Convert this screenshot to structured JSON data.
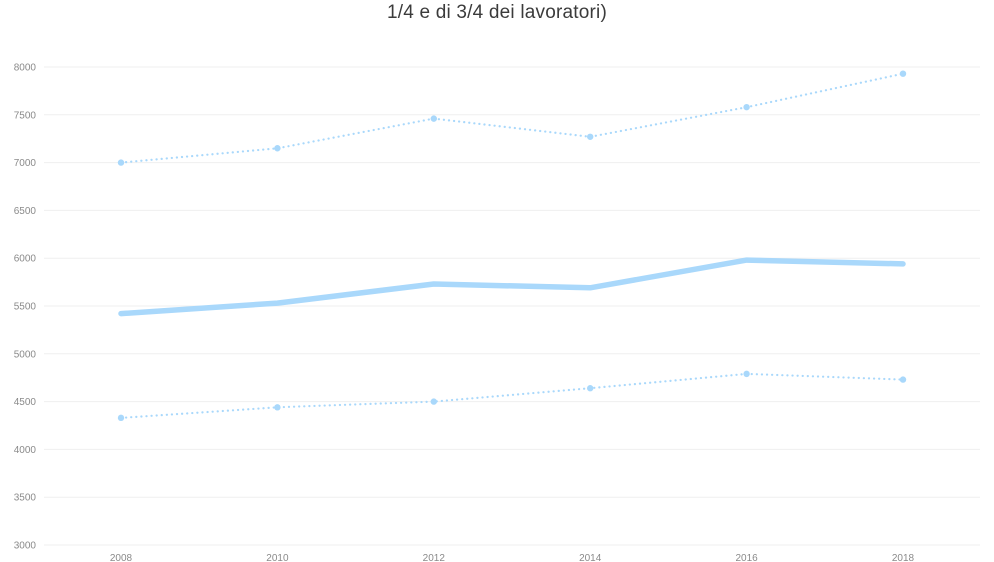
{
  "chart_data": {
    "type": "line",
    "title": "1/4 e di 3/4 dei lavoratori)",
    "xlabel": "",
    "ylabel": "",
    "x": [
      "2008",
      "2010",
      "2012",
      "2014",
      "2016",
      "2018"
    ],
    "ylim": [
      3000,
      8000
    ],
    "yticks": [
      3000,
      3500,
      4000,
      4500,
      5000,
      5500,
      6000,
      6500,
      7000,
      7500,
      8000
    ],
    "grid": true,
    "legend": "none",
    "series": [
      {
        "values": [
          7000,
          7150,
          7460,
          7270,
          7580,
          7930
        ],
        "style": "dotted",
        "color": "#a9d8fb",
        "markers": true
      },
      {
        "values": [
          5420,
          5530,
          5730,
          5690,
          5980,
          5940
        ],
        "style": "solid-thick",
        "color": "#a9d8fb",
        "markers": false
      },
      {
        "values": [
          4330,
          4440,
          4500,
          4640,
          4790,
          4730
        ],
        "style": "dotted",
        "color": "#a9d8fb",
        "markers": true
      }
    ]
  }
}
